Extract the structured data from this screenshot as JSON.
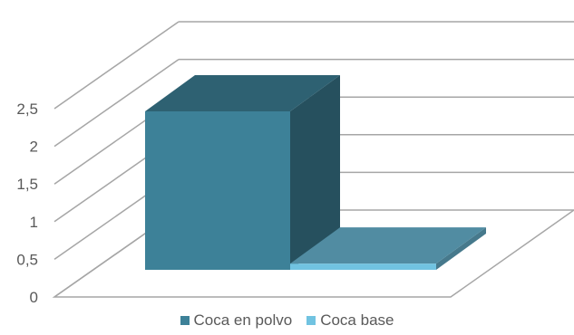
{
  "chart_data": {
    "type": "bar",
    "title": "",
    "xlabel": "",
    "ylabel": "",
    "categories": [
      ""
    ],
    "ylim": [
      0,
      2.5
    ],
    "yticks": [
      0,
      0.5,
      1,
      1.5,
      2,
      2.5
    ],
    "ytick_labels": [
      "0",
      "0,5",
      "1",
      "1,5",
      "2",
      "2,5"
    ],
    "grid": true,
    "three_d": true,
    "legend_position": "bottom",
    "series": [
      {
        "name": "Coca en polvo",
        "values": [
          2.05
        ],
        "color": "#3d8198"
      },
      {
        "name": "Coca base",
        "values": [
          0.08
        ],
        "color": "#71c3e1"
      }
    ]
  }
}
